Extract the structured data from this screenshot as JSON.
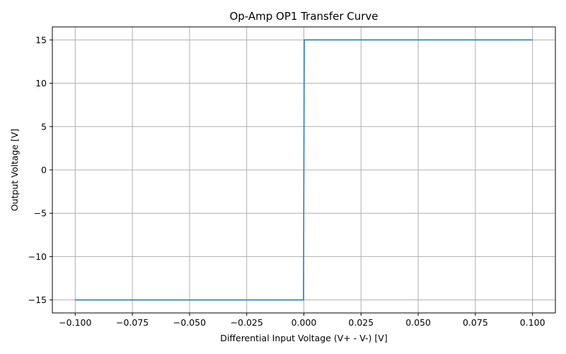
{
  "chart_data": {
    "type": "line",
    "title": "Op-Amp OP1 Transfer Curve",
    "xlabel": "Differential Input Voltage (V+ - V-) [V]",
    "ylabel": "Output Voltage [V]",
    "xlim": [
      -0.11,
      0.11
    ],
    "ylim": [
      -16.5,
      16.5
    ],
    "x_ticks": [
      -0.1,
      -0.075,
      -0.05,
      -0.025,
      0.0,
      0.025,
      0.05,
      0.075,
      0.1
    ],
    "x_tick_labels": [
      "−0.100",
      "−0.075",
      "−0.050",
      "−0.025",
      "0.000",
      "0.025",
      "0.050",
      "0.075",
      "0.100"
    ],
    "y_ticks": [
      -15,
      -10,
      -5,
      0,
      5,
      10,
      15
    ],
    "y_tick_labels": [
      "−15",
      "−10",
      "−5",
      "0",
      "5",
      "10",
      "15"
    ],
    "grid": true,
    "series": [
      {
        "name": "OP1",
        "color": "#1f77b4",
        "x": [
          -0.1,
          -0.0002,
          -0.00015,
          0.00015,
          0.0002,
          0.1
        ],
        "y": [
          -15,
          -15,
          -15,
          15,
          15,
          15
        ]
      }
    ]
  }
}
